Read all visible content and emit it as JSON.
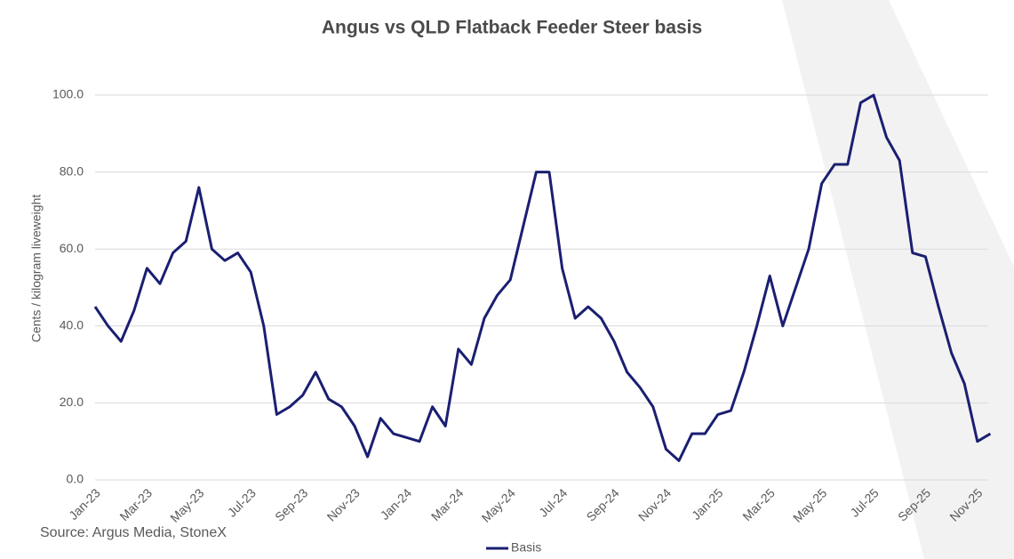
{
  "chart_data": {
    "type": "line",
    "title": "Angus vs QLD Flatback Feeder Steer basis",
    "y_label": "Cents / kilogram liveweight",
    "source": "Source: Argus Media, StoneX",
    "categories": [
      "Jan-23",
      null,
      null,
      null,
      "Mar-23",
      null,
      null,
      null,
      "May-23",
      null,
      null,
      null,
      "Jul-23",
      null,
      null,
      null,
      "Sep-23",
      null,
      null,
      null,
      "Nov-23",
      null,
      null,
      null,
      "Jan-24",
      null,
      null,
      null,
      "Mar-24",
      null,
      null,
      null,
      "May-24",
      null,
      null,
      null,
      "Jul-24",
      null,
      null,
      null,
      "Sep-24",
      null,
      null,
      null,
      "Nov-24",
      null,
      null,
      null,
      "Jan-25",
      null,
      null,
      null,
      "Mar-25",
      null,
      null,
      null,
      "May-25",
      null,
      null,
      null,
      "Jul-25",
      null,
      null,
      null,
      "Sep-25",
      null,
      null,
      null,
      "Nov-25",
      null
    ],
    "series": [
      {
        "name": "Basis",
        "color": "#1a1f71",
        "values": [
          45,
          40,
          36,
          44,
          55,
          51,
          59,
          62,
          76,
          60,
          57,
          59,
          54,
          40,
          17,
          19,
          22,
          28,
          21,
          19,
          14,
          6,
          16,
          12,
          11,
          10,
          19,
          14,
          34,
          30,
          42,
          48,
          52,
          66,
          80,
          80,
          55,
          42,
          45,
          42,
          36,
          28,
          24,
          19,
          8,
          5,
          12,
          12,
          17,
          18,
          28,
          40,
          53,
          40,
          50,
          60,
          77,
          82,
          82,
          98,
          100,
          89,
          83,
          59,
          58,
          45,
          33,
          25,
          10,
          12
        ]
      }
    ],
    "ylim": [
      0,
      100
    ],
    "yticks": [
      {
        "value": 0,
        "label": "0.0"
      },
      {
        "value": 20,
        "label": "20.0"
      },
      {
        "value": 40,
        "label": "40.0"
      },
      {
        "value": 60,
        "label": "60.0"
      },
      {
        "value": 80,
        "label": "80.0"
      },
      {
        "value": 100,
        "label": "100.0"
      }
    ],
    "grid": true,
    "legend": "bottom"
  }
}
